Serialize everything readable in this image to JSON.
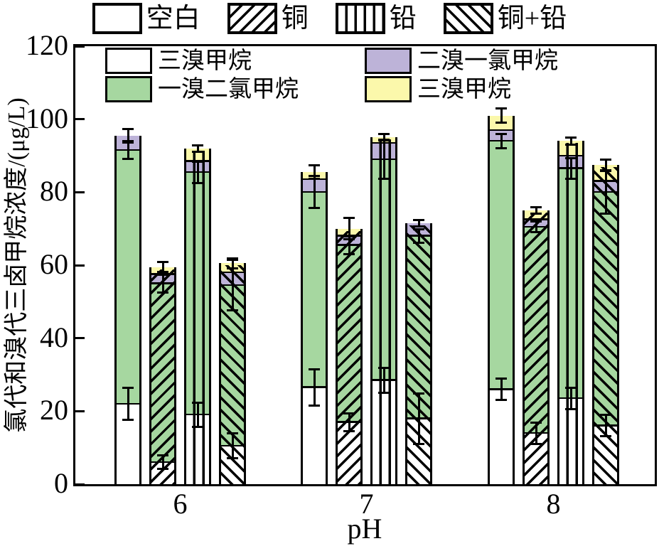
{
  "figure": {
    "xlabel": "pH",
    "ylabel": "氯代和溴代三卤甲烷浓度/(μg/L)"
  },
  "species_legend_display": [
    {
      "label": "三溴甲烷",
      "color": "#ffffff"
    },
    {
      "label": "二溴一氯甲烷",
      "color": "#bdb3d8"
    },
    {
      "label": "一溴二氯甲烷",
      "color": "#a6d7a0"
    },
    {
      "label": "三溴甲烷",
      "color": "#fbf8ab"
    }
  ],
  "chart_data": {
    "type": "bar",
    "variant": "grouped-stacked",
    "title": "",
    "xlabel": "pH",
    "ylabel": "氯代和溴代三卤甲烷浓度/(μg/L)",
    "unit": "μg/L",
    "ylim": [
      0,
      120
    ],
    "yticks": [
      0,
      20,
      40,
      60,
      80,
      100,
      120
    ],
    "grid": false,
    "legend_position": {
      "treatments": "top-outside",
      "species": "inside-top-left"
    },
    "groups": [
      "6",
      "7",
      "8"
    ],
    "treatments": [
      {
        "label": "空白",
        "hatch": "none"
      },
      {
        "label": "铜",
        "hatch": "diagonal"
      },
      {
        "label": "铅",
        "hatch": "vertical"
      },
      {
        "label": "铜+铅",
        "hatch": "reverse-diagonal"
      }
    ],
    "stack_species_bottom_to_top": [
      "三溴甲烷",
      "一溴二氯甲烷",
      "二溴一氯甲烷",
      "三溴甲烷"
    ],
    "stack_colors_bottom_to_top": [
      "#ffffff",
      "#a6d7a0",
      "#bdb3d8",
      "#fbf8ab"
    ],
    "bars": [
      {
        "group": "6",
        "treatment": "空白",
        "segments": [
          22,
          69.5,
          4,
          0
        ],
        "errors": [
          4.5,
          2.5,
          2
        ]
      },
      {
        "group": "6",
        "treatment": "铜",
        "segments": [
          6,
          49,
          2.5,
          2
        ],
        "errors": [
          2,
          2.5,
          1.5
        ]
      },
      {
        "group": "6",
        "treatment": "铅",
        "segments": [
          19,
          66.5,
          3,
          3.5
        ],
        "errors": [
          3.5,
          3,
          1
        ]
      },
      {
        "group": "6",
        "treatment": "铜+铅",
        "segments": [
          10.5,
          44,
          3.5,
          2.5
        ],
        "errors": [
          3.5,
          7,
          1.5
        ]
      },
      {
        "group": "7",
        "treatment": "空白",
        "segments": [
          26.5,
          53.5,
          3.5,
          2
        ],
        "errors": [
          5,
          4.5,
          2
        ]
      },
      {
        "group": "7",
        "treatment": "铜",
        "segments": [
          17,
          48.5,
          2.5,
          2
        ],
        "errors": [
          2.5,
          2.5,
          3
        ]
      },
      {
        "group": "7",
        "treatment": "铅",
        "segments": [
          28.5,
          60.5,
          4.5,
          1.5
        ],
        "errors": [
          3.5,
          5.5,
          1
        ]
      },
      {
        "group": "7",
        "treatment": "铜+铅",
        "segments": [
          18,
          50,
          3.5,
          0
        ],
        "errors": [
          7,
          2,
          1
        ]
      },
      {
        "group": "8",
        "treatment": "空白",
        "segments": [
          26,
          68,
          3,
          4
        ],
        "errors": [
          3,
          2,
          2
        ]
      },
      {
        "group": "8",
        "treatment": "铜",
        "segments": [
          14,
          56.5,
          2,
          2.5
        ],
        "errors": [
          3,
          1.5,
          1
        ]
      },
      {
        "group": "8",
        "treatment": "铅",
        "segments": [
          23.5,
          63,
          3.5,
          4
        ],
        "errors": [
          3,
          3,
          1
        ]
      },
      {
        "group": "8",
        "treatment": "铜+铅",
        "segments": [
          16,
          64,
          3,
          4.5
        ],
        "errors": [
          3,
          6,
          1.5
        ]
      }
    ],
    "errors_note": "errors = half-length of error bars (μg/L) located at: [top of bottom white segment, top of green segment, top of bar]"
  }
}
